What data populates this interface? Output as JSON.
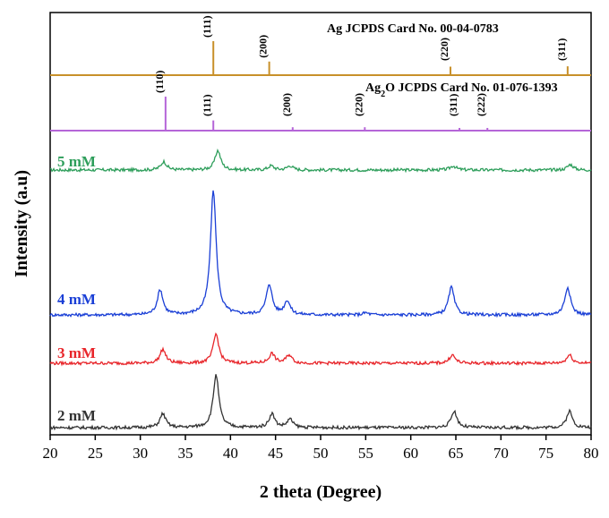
{
  "chart_data": {
    "type": "line",
    "xlabel": "2 theta (Degree)",
    "ylabel": "Intensity (a.u)",
    "xlim": [
      20,
      80
    ],
    "xticks": [
      20,
      25,
      30,
      35,
      40,
      45,
      50,
      55,
      60,
      65,
      70,
      75,
      80
    ],
    "reference_patterns": [
      {
        "name": "Ag JCPDS Card No. 00-04-0783",
        "color": "#c8902a",
        "peaks": [
          {
            "x": 38.1,
            "hkl": "(111)",
            "rel": 1.0
          },
          {
            "x": 44.3,
            "hkl": "(200)",
            "rel": 0.4
          },
          {
            "x": 64.4,
            "hkl": "(220)",
            "rel": 0.25
          },
          {
            "x": 77.4,
            "hkl": "(311)",
            "rel": 0.26
          }
        ]
      },
      {
        "name_prefix": "Ag",
        "name_sub": "2",
        "name_suffix": "O JCPDS Card No. 01-076-1393",
        "color": "#b565d8",
        "peaks": [
          {
            "x": 32.8,
            "hkl": "(110)",
            "rel": 1.0
          },
          {
            "x": 38.1,
            "hkl": "(111)",
            "rel": 0.3
          },
          {
            "x": 46.9,
            "hkl": "(200)",
            "rel": 0.1
          },
          {
            "x": 54.9,
            "hkl": "(220)",
            "rel": 0.1
          },
          {
            "x": 65.4,
            "hkl": "(311)",
            "rel": 0.07
          },
          {
            "x": 68.5,
            "hkl": "(222)",
            "rel": 0.05
          }
        ]
      }
    ],
    "series": [
      {
        "name": "5 mM",
        "color": "#2e9e5b",
        "baseline": 0.0,
        "peaks": [
          [
            32.6,
            6
          ],
          [
            38.6,
            14
          ],
          [
            44.5,
            3
          ],
          [
            46.6,
            3
          ],
          [
            64.7,
            3
          ],
          [
            77.7,
            4
          ]
        ]
      },
      {
        "name": "4 mM",
        "color": "#1a3fd6",
        "baseline": 0.0,
        "peaks": [
          [
            32.2,
            18
          ],
          [
            38.1,
            90
          ],
          [
            44.3,
            22
          ],
          [
            46.3,
            10
          ],
          [
            55.0,
            1.5
          ],
          [
            64.5,
            20
          ],
          [
            77.4,
            20
          ]
        ]
      },
      {
        "name": "3 mM",
        "color": "#e8252a",
        "baseline": 0.0,
        "peaks": [
          [
            32.5,
            10
          ],
          [
            38.4,
            21
          ],
          [
            44.6,
            7
          ],
          [
            46.5,
            6
          ],
          [
            64.6,
            6
          ],
          [
            77.6,
            6
          ]
        ]
      },
      {
        "name": "2 mM",
        "color": "#333333",
        "baseline": 0.0,
        "peaks": [
          [
            32.5,
            10
          ],
          [
            38.4,
            38
          ],
          [
            44.6,
            10
          ],
          [
            46.6,
            6
          ],
          [
            64.8,
            12
          ],
          [
            77.6,
            12
          ]
        ]
      }
    ]
  }
}
